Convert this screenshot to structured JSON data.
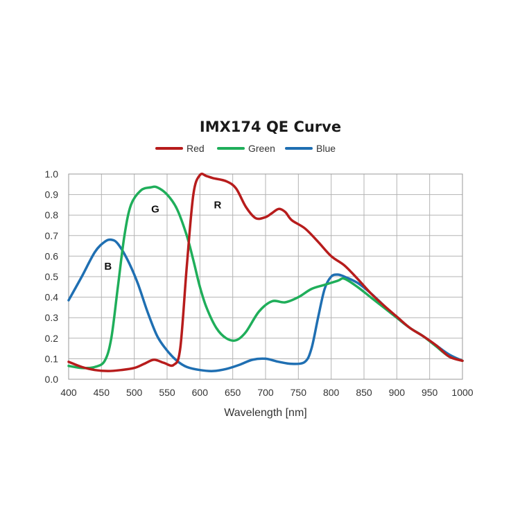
{
  "chart_data": {
    "type": "line",
    "title": "IMX174 QE Curve",
    "xlabel": "Wavelength [nm]",
    "ylabel": "",
    "xlim": [
      400,
      1000
    ],
    "ylim": [
      0,
      1.0
    ],
    "grid": true,
    "legend_position": "top-center",
    "x_ticks": [
      400,
      450,
      500,
      550,
      600,
      650,
      700,
      750,
      800,
      850,
      900,
      950,
      1000
    ],
    "y_ticks": [
      "0.0",
      "0.1",
      "0.2",
      "0.3",
      "0.4",
      "0.5",
      "0.6",
      "0.7",
      "0.8",
      "0.9",
      "1.0"
    ],
    "series": [
      {
        "name": "Red",
        "color": "#b71c1c",
        "x": [
          400,
          420,
          440,
          460,
          480,
          500,
          515,
          530,
          545,
          560,
          570,
          580,
          590,
          600,
          610,
          620,
          640,
          655,
          670,
          685,
          700,
          710,
          720,
          730,
          740,
          760,
          780,
          800,
          820,
          840,
          860,
          880,
          900,
          920,
          940,
          960,
          980,
          1000
        ],
        "values": [
          0.085,
          0.06,
          0.045,
          0.04,
          0.045,
          0.055,
          0.075,
          0.095,
          0.08,
          0.07,
          0.15,
          0.55,
          0.9,
          0.995,
          0.99,
          0.98,
          0.965,
          0.93,
          0.84,
          0.785,
          0.79,
          0.81,
          0.83,
          0.815,
          0.775,
          0.735,
          0.67,
          0.6,
          0.555,
          0.49,
          0.42,
          0.36,
          0.305,
          0.25,
          0.21,
          0.165,
          0.11,
          0.09
        ]
      },
      {
        "name": "Green",
        "color": "#1fae5a",
        "x": [
          400,
          420,
          440,
          455,
          465,
          475,
          485,
          495,
          510,
          525,
          535,
          550,
          565,
          580,
          590,
          600,
          610,
          625,
          640,
          655,
          670,
          690,
          710,
          730,
          750,
          770,
          790,
          810,
          820,
          840,
          860,
          880,
          900,
          920,
          940,
          960,
          980,
          1000
        ],
        "values": [
          0.065,
          0.055,
          0.06,
          0.09,
          0.2,
          0.45,
          0.7,
          0.85,
          0.92,
          0.935,
          0.935,
          0.9,
          0.83,
          0.7,
          0.58,
          0.45,
          0.35,
          0.25,
          0.2,
          0.19,
          0.23,
          0.33,
          0.38,
          0.375,
          0.4,
          0.44,
          0.46,
          0.48,
          0.49,
          0.45,
          0.4,
          0.35,
          0.3,
          0.25,
          0.21,
          0.16,
          0.11,
          0.09
        ]
      },
      {
        "name": "Blue",
        "color": "#1f6fb2",
        "x": [
          400,
          420,
          440,
          455,
          465,
          475,
          490,
          505,
          520,
          535,
          550,
          565,
          580,
          600,
          620,
          640,
          660,
          680,
          700,
          720,
          740,
          760,
          770,
          780,
          790,
          800,
          810,
          820,
          840,
          860,
          880,
          900,
          920,
          940,
          960,
          980,
          1000
        ],
        "values": [
          0.385,
          0.5,
          0.62,
          0.67,
          0.68,
          0.66,
          0.58,
          0.47,
          0.33,
          0.21,
          0.14,
          0.09,
          0.06,
          0.045,
          0.04,
          0.05,
          0.07,
          0.095,
          0.1,
          0.085,
          0.075,
          0.085,
          0.15,
          0.3,
          0.44,
          0.5,
          0.51,
          0.5,
          0.47,
          0.42,
          0.36,
          0.3,
          0.25,
          0.21,
          0.165,
          0.12,
          0.09
        ]
      }
    ],
    "annotations": [
      {
        "text": "G",
        "x": 532,
        "y": 0.83
      },
      {
        "text": "R",
        "x": 627,
        "y": 0.85
      },
      {
        "text": "B",
        "x": 460,
        "y": 0.55
      }
    ]
  }
}
